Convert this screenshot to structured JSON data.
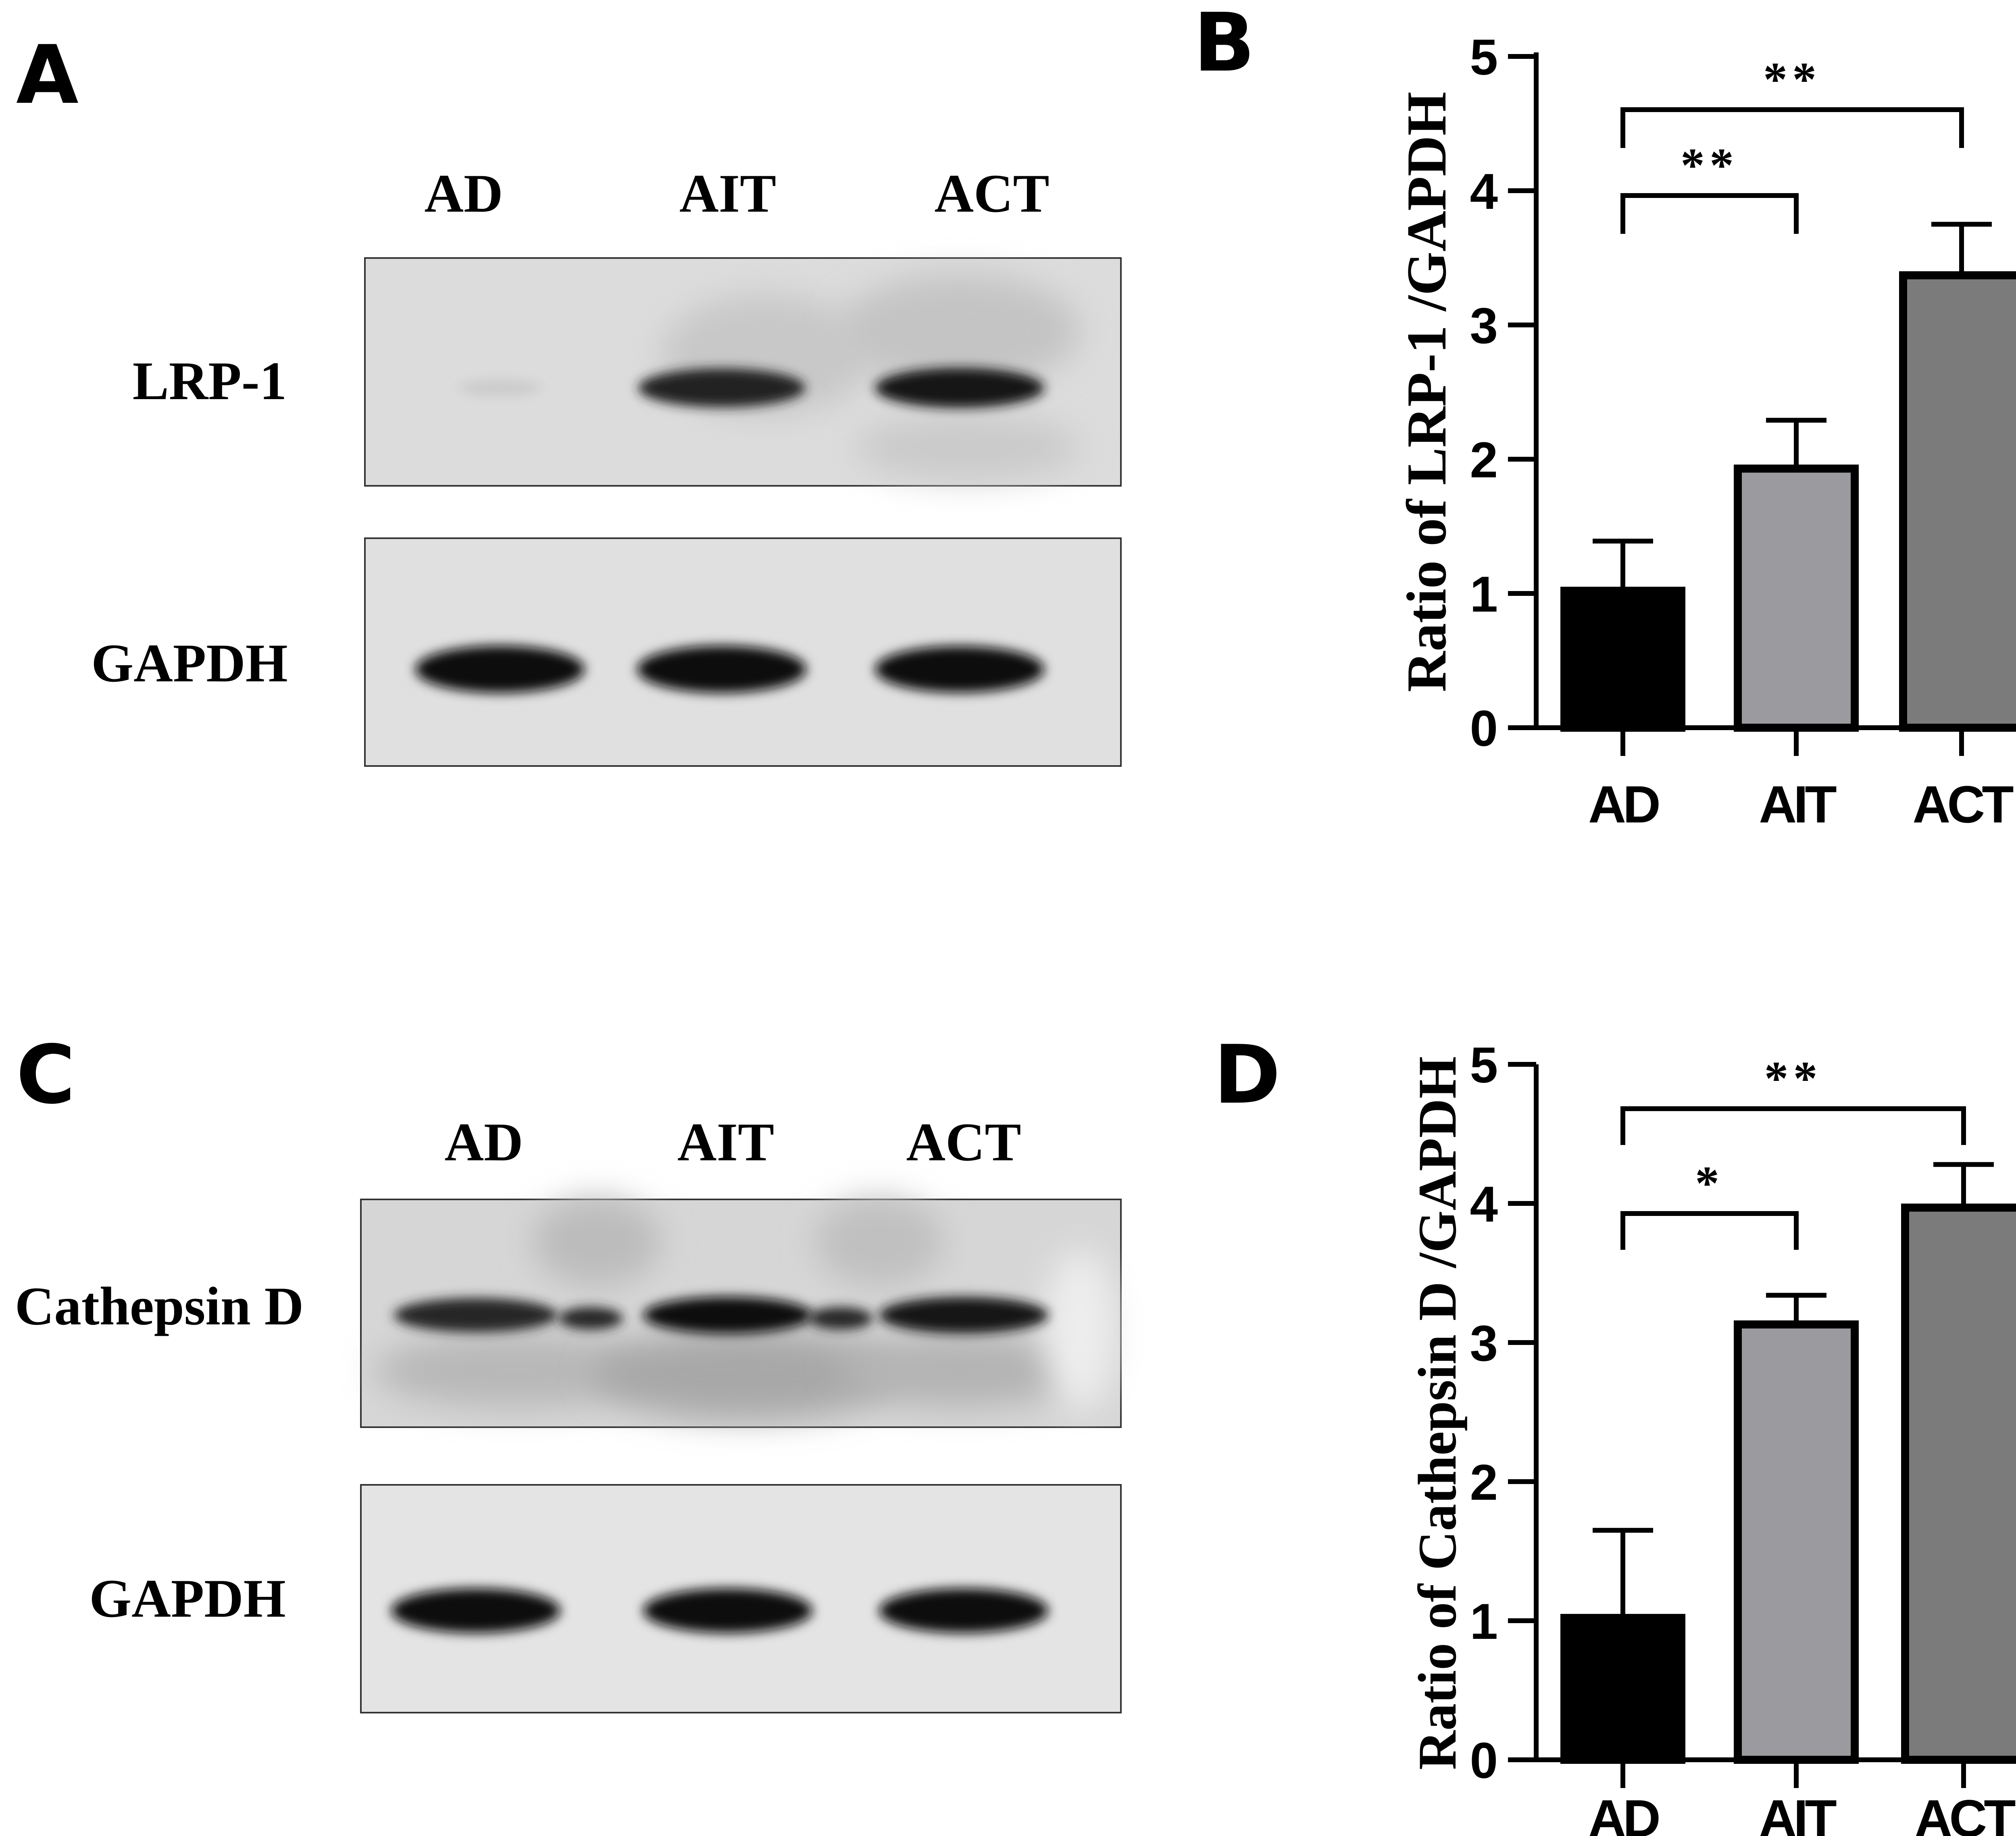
{
  "panels": {
    "A": {
      "letter": "A"
    },
    "B": {
      "letter": "B"
    },
    "C": {
      "letter": "C"
    },
    "D": {
      "letter": "D"
    }
  },
  "blots": {
    "A": {
      "lanes": [
        "AD",
        "AIT",
        "ACT"
      ],
      "rows": [
        {
          "label": "LRP-1",
          "intensities": [
            0.12,
            0.88,
            0.92
          ]
        },
        {
          "label": "GAPDH",
          "intensities": [
            0.97,
            0.97,
            0.95
          ]
        }
      ]
    },
    "C": {
      "lanes": [
        "AD",
        "AIT",
        "ACT"
      ],
      "rows": [
        {
          "label": "Cathepsin D",
          "intensities": [
            0.85,
            0.95,
            0.93
          ]
        },
        {
          "label": "GAPDH",
          "intensities": [
            0.95,
            0.95,
            0.95
          ]
        }
      ]
    }
  },
  "chart_data": [
    {
      "panel": "B",
      "type": "bar",
      "categories": [
        "AD",
        "AIT",
        "ACT"
      ],
      "values": [
        1.02,
        1.93,
        3.37
      ],
      "errors": [
        0.37,
        0.36,
        0.38
      ],
      "ylabel": "Ratio of LRP-1 /GAPDH",
      "xlabel": "",
      "ylim": [
        0,
        5
      ],
      "yticks": [
        "0",
        "1",
        "2",
        "3",
        "4",
        "5"
      ],
      "bar_colors": [
        "#000000",
        "#9b9b9f",
        "#7b7b7b"
      ],
      "significance": [
        {
          "from": "AD",
          "to": "AIT",
          "label": "**"
        },
        {
          "from": "AD",
          "to": "ACT",
          "label": "**"
        }
      ]
    },
    {
      "panel": "D",
      "type": "bar",
      "categories": [
        "AD",
        "AIT",
        "ACT"
      ],
      "values": [
        1.02,
        3.13,
        3.97
      ],
      "errors": [
        0.63,
        0.21,
        0.31
      ],
      "ylabel": "Ratio of Cathepsin D /GAPDH",
      "xlabel": "",
      "ylim": [
        0,
        5
      ],
      "yticks": [
        "0",
        "1",
        "2",
        "3",
        "4",
        "5"
      ],
      "bar_colors": [
        "#000000",
        "#9b9b9f",
        "#7b7b7b"
      ],
      "significance": [
        {
          "from": "AD",
          "to": "AIT",
          "label": "*"
        },
        {
          "from": "AD",
          "to": "ACT",
          "label": "**"
        }
      ]
    }
  ]
}
